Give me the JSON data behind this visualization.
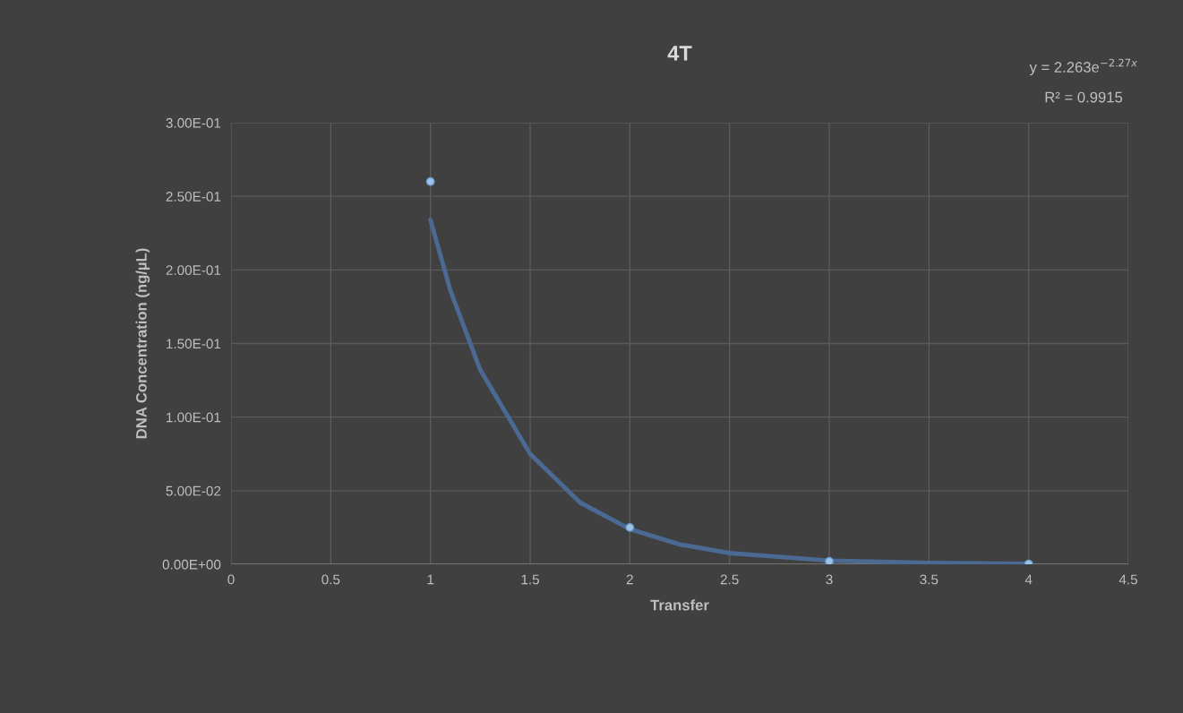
{
  "chart_data": {
    "type": "scatter",
    "title": "4T",
    "xlabel": "Transfer",
    "ylabel": "DNA Concentration (ng/µL)",
    "xlim": [
      0,
      4.5
    ],
    "xticks": [
      0,
      0.5,
      1,
      1.5,
      2,
      2.5,
      3,
      3.5,
      4,
      4.5
    ],
    "ylim": [
      0,
      0.3
    ],
    "yticks": [
      {
        "value": 0,
        "label": "0.00E+00"
      },
      {
        "value": 0.05,
        "label": "5.00E-02"
      },
      {
        "value": 0.1,
        "label": "1.00E-01"
      },
      {
        "value": 0.15,
        "label": "1.50E-01"
      },
      {
        "value": 0.2,
        "label": "2.00E-01"
      },
      {
        "value": 0.25,
        "label": "2.50E-01"
      },
      {
        "value": 0.3,
        "label": "3.00E-01"
      }
    ],
    "grid": true,
    "marker": "circle",
    "series": [
      {
        "color": "#9dc3e6",
        "x": [
          1,
          2,
          3,
          4
        ],
        "values": [
          0.26,
          0.025,
          0.002,
          0.0003
        ]
      },
      {
        "type": "line",
        "color": "#4a6a93",
        "marker": "none",
        "x": [
          1,
          1.1,
          1.25,
          1.5,
          1.75,
          2,
          2.25,
          2.5,
          3,
          3.5,
          4
        ],
        "values": [
          0.234,
          0.186,
          0.132,
          0.075,
          0.042,
          0.024,
          0.0135,
          0.0076,
          0.0025,
          0.001,
          0.0003
        ]
      }
    ],
    "annotations": [
      "y = 2.263e$^{−2.27x}$",
      "R² = 0.9915"
    ]
  }
}
